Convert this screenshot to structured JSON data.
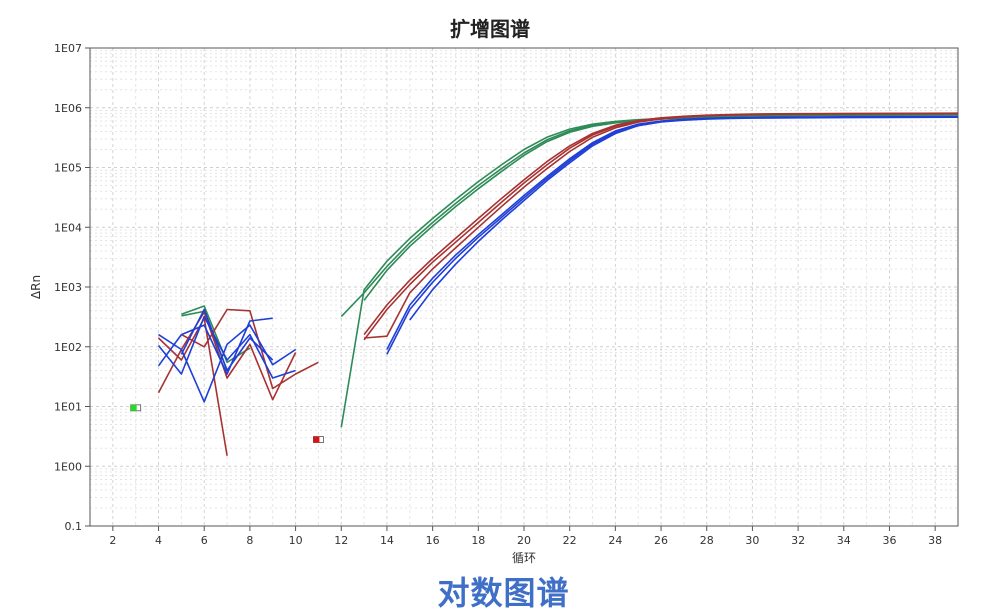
{
  "chart_data": {
    "type": "line",
    "title": "扩增图谱",
    "xlabel": "循环",
    "ylabel": "ΔRn",
    "y_scale": "log",
    "xlim": [
      1,
      39
    ],
    "ylim": [
      0.1,
      10000000
    ],
    "x_ticks": [
      2,
      4,
      6,
      8,
      10,
      12,
      14,
      16,
      18,
      20,
      22,
      24,
      26,
      28,
      30,
      32,
      34,
      36,
      38
    ],
    "y_ticks": [
      0.1,
      1,
      10,
      100,
      1000,
      10000,
      100000,
      1000000,
      10000000
    ],
    "y_tick_labels": [
      "0.1",
      "1E00",
      "1E01",
      "1E02",
      "1E03",
      "1E04",
      "1E05",
      "1E06",
      "1E07"
    ],
    "grid": true,
    "series_colors": {
      "green": "#2e8b57",
      "red": "#a83232",
      "blue": "#1f3fd6"
    },
    "threshold_markers": [
      {
        "x": 3,
        "y": 9.5,
        "color": "#22dd22"
      },
      {
        "x": 11,
        "y": 2.8,
        "color": "#dd1111"
      }
    ],
    "series": [
      {
        "color": "green",
        "x": [
          12,
          13,
          14,
          15,
          16,
          17,
          18,
          19,
          20,
          21,
          22,
          23,
          24,
          25,
          26,
          27,
          28,
          29,
          30,
          32,
          34,
          36,
          39
        ],
        "y": [
          4.5,
          900,
          2700,
          6500,
          14000,
          29000,
          58000,
          110000,
          200000,
          320000,
          440000,
          530000,
          590000,
          630000,
          660000,
          690000,
          710000,
          730000,
          740000,
          750000,
          760000,
          765000,
          770000
        ]
      },
      {
        "color": "green",
        "x": [
          12,
          13,
          14,
          15,
          16,
          17,
          18,
          19,
          20,
          21,
          22,
          23,
          24,
          25,
          26,
          27,
          28,
          29,
          30,
          32,
          34,
          36,
          39
        ],
        "y": [
          320,
          800,
          2200,
          5500,
          12000,
          25000,
          50000,
          95000,
          175000,
          290000,
          410000,
          510000,
          570000,
          615000,
          650000,
          680000,
          700000,
          720000,
          735000,
          745000,
          755000,
          760000,
          765000
        ]
      },
      {
        "color": "green",
        "x": [
          13,
          14,
          15,
          16,
          17,
          18,
          19,
          20,
          21,
          22,
          23,
          24,
          25,
          26,
          27,
          28,
          29,
          30,
          32,
          34,
          36,
          39
        ],
        "y": [
          600,
          1900,
          4800,
          10500,
          22000,
          44000,
          85000,
          160000,
          270000,
          390000,
          490000,
          560000,
          610000,
          645000,
          675000,
          695000,
          715000,
          730000,
          740000,
          750000,
          755000,
          760000
        ]
      },
      {
        "color": "green",
        "x": [
          5,
          6,
          7,
          8
        ],
        "y": [
          350,
          480,
          55,
          95
        ]
      },
      {
        "color": "green",
        "x": [
          5,
          6,
          7
        ],
        "y": [
          330,
          390,
          40
        ]
      },
      {
        "color": "red",
        "x": [
          13,
          14,
          15,
          16,
          17,
          18,
          19,
          20,
          21,
          22,
          23,
          24,
          25,
          26,
          27,
          28,
          29,
          30,
          32,
          34,
          36,
          39
        ],
        "y": [
          160,
          500,
          1300,
          3000,
          6500,
          14000,
          30000,
          62000,
          125000,
          230000,
          370000,
          510000,
          610000,
          680000,
          720000,
          750000,
          770000,
          785000,
          795000,
          800000,
          805000,
          810000
        ]
      },
      {
        "color": "red",
        "x": [
          13,
          14,
          15,
          16,
          17,
          18,
          19,
          20,
          21,
          22,
          23,
          24,
          25,
          26,
          27,
          28,
          29,
          30,
          32,
          34,
          36,
          39
        ],
        "y": [
          130,
          420,
          1100,
          2600,
          5600,
          12000,
          26000,
          55000,
          110000,
          210000,
          350000,
          490000,
          595000,
          665000,
          710000,
          740000,
          760000,
          775000,
          790000,
          795000,
          800000,
          805000
        ]
      },
      {
        "color": "red",
        "x": [
          13,
          14,
          15,
          16,
          17,
          18,
          19,
          20,
          21,
          22,
          23,
          24,
          25,
          26,
          27,
          28,
          29,
          30,
          32,
          34,
          36,
          39
        ],
        "y": [
          140,
          150,
          800,
          2000,
          4500,
          10000,
          22000,
          47000,
          95000,
          185000,
          320000,
          460000,
          575000,
          650000,
          700000,
          735000,
          755000,
          770000,
          785000,
          790000,
          795000,
          800000
        ]
      },
      {
        "color": "red",
        "x": [
          4,
          5,
          6,
          7,
          8,
          9,
          10
        ],
        "y": [
          17,
          90,
          380,
          30,
          110,
          13,
          80
        ]
      },
      {
        "color": "red",
        "x": [
          5,
          6,
          7,
          8,
          9,
          10,
          11
        ],
        "y": [
          160,
          100,
          420,
          400,
          20,
          35,
          55
        ]
      },
      {
        "color": "red",
        "x": [
          4,
          5,
          6,
          7
        ],
        "y": [
          140,
          60,
          300,
          1.5
        ]
      },
      {
        "color": "blue",
        "x": [
          14,
          15,
          16,
          17,
          18,
          19,
          20,
          21,
          22,
          23,
          24,
          25,
          26,
          27,
          28,
          29,
          30,
          32,
          34,
          36,
          39
        ],
        "y": [
          90,
          500,
          1400,
          3400,
          7500,
          16000,
          34000,
          70000,
          140000,
          260000,
          410000,
          530000,
          600000,
          640000,
          665000,
          680000,
          690000,
          700000,
          705000,
          710000,
          715000
        ]
      },
      {
        "color": "blue",
        "x": [
          14,
          15,
          16,
          17,
          18,
          19,
          20,
          21,
          22,
          23,
          24,
          25,
          26,
          27,
          28,
          29,
          30,
          32,
          34,
          36,
          39
        ],
        "y": [
          75,
          420,
          1200,
          3000,
          6800,
          14500,
          31000,
          65000,
          130000,
          245000,
          390000,
          515000,
          590000,
          630000,
          655000,
          670000,
          680000,
          690000,
          695000,
          700000,
          705000
        ]
      },
      {
        "color": "blue",
        "x": [
          15,
          16,
          17,
          18,
          19,
          20,
          21,
          22,
          23,
          24,
          25,
          26,
          27,
          28,
          29,
          30,
          32,
          34,
          36,
          39
        ],
        "y": [
          280,
          900,
          2400,
          5800,
          13000,
          28000,
          60000,
          120000,
          230000,
          370000,
          500000,
          580000,
          620000,
          645000,
          660000,
          670000,
          680000,
          685000,
          690000,
          695000
        ]
      },
      {
        "color": "blue",
        "x": [
          4,
          5,
          6,
          7,
          8,
          9
        ],
        "y": [
          48,
          160,
          230,
          35,
          270,
          300
        ]
      },
      {
        "color": "blue",
        "x": [
          4,
          5,
          6,
          7,
          8,
          9,
          10
        ],
        "y": [
          160,
          90,
          12,
          110,
          230,
          50,
          90
        ]
      },
      {
        "color": "blue",
        "x": [
          5,
          6,
          7,
          8,
          9
        ],
        "y": [
          75,
          420,
          40,
          140,
          60
        ]
      },
      {
        "color": "blue",
        "x": [
          4,
          5,
          6,
          7,
          8,
          9,
          10
        ],
        "y": [
          105,
          35,
          320,
          60,
          160,
          30,
          40
        ]
      }
    ]
  },
  "caption": "对数图谱"
}
